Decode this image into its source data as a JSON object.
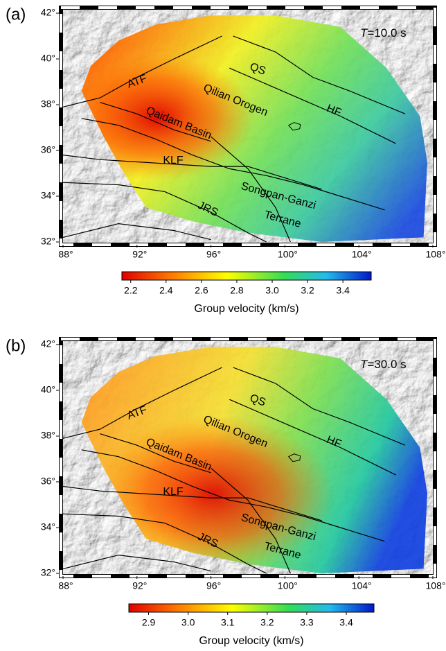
{
  "panels": [
    {
      "label": "(a)",
      "period": {
        "symbol": "T",
        "text": "=10.0 s"
      },
      "xlim": [
        88,
        108
      ],
      "ylim": [
        32,
        42
      ],
      "xticks": [
        {
          "value": 88,
          "label": "88°"
        },
        {
          "value": 92,
          "label": "92°"
        },
        {
          "value": 96,
          "label": "96°"
        },
        {
          "value": 100,
          "label": "100°"
        },
        {
          "value": 104,
          "label": "104°"
        },
        {
          "value": 108,
          "label": "108°"
        }
      ],
      "yticks": [
        {
          "value": 32,
          "label": "32°"
        },
        {
          "value": 34,
          "label": "34°"
        },
        {
          "value": 36,
          "label": "36°"
        },
        {
          "value": 38,
          "label": "38°"
        },
        {
          "value": 40,
          "label": "40°"
        },
        {
          "value": 42,
          "label": "42°"
        }
      ],
      "places": [
        "ATF",
        "QS",
        "Qilian Orogen",
        "HF",
        "Qaidam Basin",
        "KLF",
        "Songpan-Ganzi",
        "JRS",
        "Terrane"
      ],
      "colorbar": {
        "label": "Group velocity (km/s)",
        "lim": [
          2.15,
          3.56
        ],
        "ticks": [
          2.2,
          2.4,
          2.6,
          2.8,
          {
            "value": 3,
            "label": "3.0"
          },
          3.2,
          3.4
        ]
      }
    },
    {
      "label": "(b)",
      "period": {
        "symbol": "T",
        "text": "=30.0 s"
      },
      "xlim": [
        88,
        108
      ],
      "ylim": [
        32,
        42
      ],
      "xticks": [
        {
          "value": 88,
          "label": "88°"
        },
        {
          "value": 92,
          "label": "92°"
        },
        {
          "value": 96,
          "label": "96°"
        },
        {
          "value": 100,
          "label": "100°"
        },
        {
          "value": 104,
          "label": "104°"
        },
        {
          "value": 108,
          "label": "108°"
        }
      ],
      "yticks": [
        {
          "value": 32,
          "label": "32°"
        },
        {
          "value": 34,
          "label": "34°"
        },
        {
          "value": 36,
          "label": "36°"
        },
        {
          "value": 38,
          "label": "38°"
        },
        {
          "value": 40,
          "label": "40°"
        },
        {
          "value": 42,
          "label": "42°"
        }
      ],
      "places": [
        "ATF",
        "QS",
        "Qilian Orogen",
        "HF",
        "Qaidam Basin",
        "KLF",
        "Songpan-Ganzi",
        "JRS",
        "Terrane"
      ],
      "colorbar": {
        "label": "Group velocity (km/s)",
        "lim": [
          2.85,
          3.47
        ],
        "ticks": [
          2.9,
          {
            "value": 3,
            "label": "3.0"
          },
          3.1,
          3.2,
          3.3,
          3.4
        ]
      }
    }
  ]
}
